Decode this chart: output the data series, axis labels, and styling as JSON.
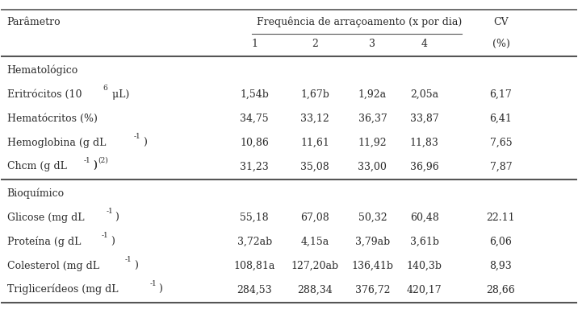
{
  "col_header_main": "Frequência de arraçoamento (x por dia)",
  "col_header_sub": [
    "1",
    "2",
    "3",
    "4"
  ],
  "col_cv": "CV",
  "col_cv_unit": "(%)",
  "param_col": "Parâmetro",
  "section_hema": "Hematológico",
  "section_bio": "Bioquímico",
  "rows": [
    {
      "param": "Eritrócitos (10",
      "param_sup": "6",
      "param_end": " μL)",
      "vals": [
        "1,54b",
        "1,67b",
        "1,92a",
        "2,05a",
        "6,17"
      ],
      "section": "hema"
    },
    {
      "param": "Hematócritos (%)",
      "vals": [
        "34,75",
        "33,12",
        "36,37",
        "33,87",
        "6,41"
      ],
      "section": "hema"
    },
    {
      "param": "Hemoglobina (g dL",
      "param_sup": "-1",
      "param_end": ")",
      "vals": [
        "10,86",
        "11,61",
        "11,92",
        "11,83",
        "7,65"
      ],
      "section": "hema"
    },
    {
      "param": "Chcm (g dL",
      "param_sup": "-1",
      "param_end": ")",
      "param_sup2": "(2)",
      "vals": [
        "31,23",
        "35,08",
        "33,00",
        "36,96",
        "7,87"
      ],
      "section": "hema"
    },
    {
      "param": "Glicose (mg dL",
      "param_sup": "-1",
      "param_end": ")",
      "vals": [
        "55,18",
        "67,08",
        "50,32",
        "60,48",
        "22.11"
      ],
      "section": "bio"
    },
    {
      "param": "Proteína (g dL",
      "param_sup": "-1",
      "param_end": ")",
      "vals": [
        "3,72ab",
        "4,15a",
        "3,79ab",
        "3,61b",
        "6,06"
      ],
      "section": "bio"
    },
    {
      "param": "Colesterol (mg dL",
      "param_sup": "-1",
      "param_end": ")",
      "vals": [
        "108,81a",
        "127,20ab",
        "136,41b",
        "140,3b",
        "8,93"
      ],
      "section": "bio"
    },
    {
      "param": "Triglicerídeos (mg dL",
      "param_sup": "-1",
      "param_end": ")",
      "vals": [
        "284,53",
        "288,34",
        "376,72",
        "420,17",
        "28,66"
      ],
      "section": "bio"
    }
  ],
  "text_color": "#2b2b2b",
  "line_color": "#555555",
  "font_size": 9.0,
  "figsize": [
    7.16,
    4.06
  ],
  "dpi": 100
}
